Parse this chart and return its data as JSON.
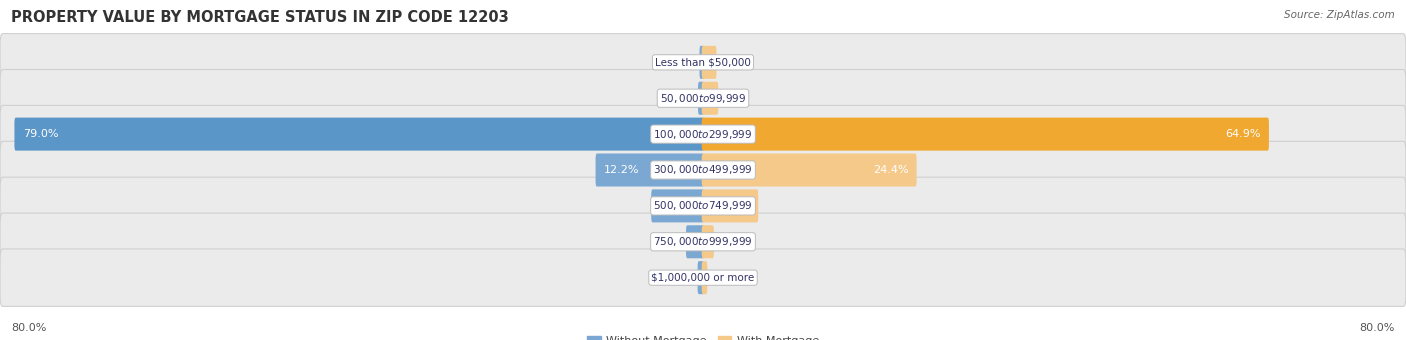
{
  "title": "PROPERTY VALUE BY MORTGAGE STATUS IN ZIP CODE 12203",
  "source": "Source: ZipAtlas.com",
  "categories": [
    "Less than $50,000",
    "$50,000 to $99,999",
    "$100,000 to $299,999",
    "$300,000 to $499,999",
    "$500,000 to $749,999",
    "$750,000 to $999,999",
    "$1,000,000 or more"
  ],
  "without_mortgage": [
    0.25,
    0.42,
    79.0,
    12.2,
    5.8,
    1.8,
    0.47
  ],
  "with_mortgage": [
    1.4,
    1.6,
    64.9,
    24.4,
    6.2,
    1.1,
    0.34
  ],
  "without_mortgage_color": "#7aa8d2",
  "with_mortgage_color": "#f5c98a",
  "with_mortgage_color_strong": "#f0a830",
  "row_bg_color": "#ebebeb",
  "row_edge_color": "#d0d0d0",
  "axis_label_left": "80.0%",
  "axis_label_right": "80.0%",
  "max_val": 80.0,
  "title_fontsize": 10.5,
  "source_fontsize": 7.5,
  "label_fontsize": 8,
  "cat_fontsize": 7.5,
  "legend_fontsize": 8,
  "title_color": "#333333",
  "source_color": "#666666",
  "label_color_dark": "#555555",
  "label_color_white": "#ffffff",
  "cat_label_color": "#333366"
}
